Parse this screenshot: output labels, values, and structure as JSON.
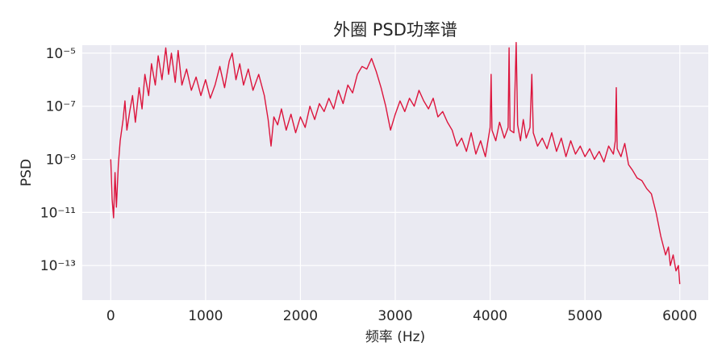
{
  "chart_data": {
    "type": "line",
    "title": "外圈 PSD功率谱",
    "xlabel": "频率 (Hz)",
    "ylabel": "PSD",
    "xlim": [
      -300,
      6300
    ],
    "ylim_log10": [
      -14.3,
      -4.7
    ],
    "y_scale": "log",
    "grid": true,
    "x_ticks": [
      {
        "value": 0,
        "label": "0"
      },
      {
        "value": 1000,
        "label": "1000"
      },
      {
        "value": 2000,
        "label": "2000"
      },
      {
        "value": 3000,
        "label": "3000"
      },
      {
        "value": 4000,
        "label": "4000"
      },
      {
        "value": 5000,
        "label": "5000"
      },
      {
        "value": 6000,
        "label": "6000"
      }
    ],
    "y_ticks": [
      {
        "value": -5,
        "label": "10⁻⁵"
      },
      {
        "value": -7,
        "label": "10⁻⁷"
      },
      {
        "value": -9,
        "label": "10⁻⁹"
      },
      {
        "value": -11,
        "label": "10⁻¹¹"
      },
      {
        "value": -13,
        "label": "10⁻¹³"
      }
    ],
    "series": [
      {
        "color": "#dc143c",
        "points": [
          [
            0,
            -9.0
          ],
          [
            15,
            -10.5
          ],
          [
            30,
            -11.2
          ],
          [
            45,
            -9.5
          ],
          [
            60,
            -10.8
          ],
          [
            80,
            -9.2
          ],
          [
            100,
            -8.3
          ],
          [
            130,
            -7.5
          ],
          [
            150,
            -6.8
          ],
          [
            170,
            -7.9
          ],
          [
            200,
            -7.2
          ],
          [
            230,
            -6.6
          ],
          [
            260,
            -7.6
          ],
          [
            300,
            -6.3
          ],
          [
            330,
            -7.1
          ],
          [
            360,
            -5.8
          ],
          [
            400,
            -6.6
          ],
          [
            430,
            -5.4
          ],
          [
            470,
            -6.2
          ],
          [
            500,
            -5.1
          ],
          [
            540,
            -6.0
          ],
          [
            580,
            -4.8
          ],
          [
            610,
            -5.8
          ],
          [
            640,
            -5.0
          ],
          [
            680,
            -6.1
          ],
          [
            710,
            -4.9
          ],
          [
            750,
            -6.2
          ],
          [
            800,
            -5.6
          ],
          [
            850,
            -6.4
          ],
          [
            900,
            -5.9
          ],
          [
            950,
            -6.6
          ],
          [
            1000,
            -6.0
          ],
          [
            1050,
            -6.7
          ],
          [
            1100,
            -6.2
          ],
          [
            1150,
            -5.5
          ],
          [
            1200,
            -6.3
          ],
          [
            1250,
            -5.3
          ],
          [
            1280,
            -5.0
          ],
          [
            1320,
            -6.0
          ],
          [
            1360,
            -5.4
          ],
          [
            1400,
            -6.2
          ],
          [
            1450,
            -5.6
          ],
          [
            1500,
            -6.4
          ],
          [
            1560,
            -5.8
          ],
          [
            1620,
            -6.6
          ],
          [
            1660,
            -7.5
          ],
          [
            1690,
            -8.5
          ],
          [
            1720,
            -7.4
          ],
          [
            1760,
            -7.7
          ],
          [
            1800,
            -7.1
          ],
          [
            1850,
            -7.9
          ],
          [
            1900,
            -7.3
          ],
          [
            1950,
            -8.0
          ],
          [
            2000,
            -7.4
          ],
          [
            2050,
            -7.8
          ],
          [
            2100,
            -7.0
          ],
          [
            2150,
            -7.5
          ],
          [
            2200,
            -6.9
          ],
          [
            2250,
            -7.2
          ],
          [
            2300,
            -6.7
          ],
          [
            2350,
            -7.1
          ],
          [
            2400,
            -6.4
          ],
          [
            2450,
            -6.9
          ],
          [
            2500,
            -6.2
          ],
          [
            2550,
            -6.5
          ],
          [
            2600,
            -5.8
          ],
          [
            2650,
            -5.5
          ],
          [
            2700,
            -5.6
          ],
          [
            2750,
            -5.2
          ],
          [
            2800,
            -5.7
          ],
          [
            2850,
            -6.3
          ],
          [
            2900,
            -7.0
          ],
          [
            2950,
            -7.9
          ],
          [
            3000,
            -7.3
          ],
          [
            3050,
            -6.8
          ],
          [
            3100,
            -7.2
          ],
          [
            3150,
            -6.7
          ],
          [
            3200,
            -7.0
          ],
          [
            3250,
            -6.4
          ],
          [
            3300,
            -6.8
          ],
          [
            3350,
            -7.1
          ],
          [
            3400,
            -6.7
          ],
          [
            3450,
            -7.4
          ],
          [
            3500,
            -7.2
          ],
          [
            3550,
            -7.6
          ],
          [
            3600,
            -7.9
          ],
          [
            3650,
            -8.5
          ],
          [
            3700,
            -8.2
          ],
          [
            3750,
            -8.7
          ],
          [
            3800,
            -8.0
          ],
          [
            3850,
            -8.8
          ],
          [
            3900,
            -8.3
          ],
          [
            3950,
            -8.9
          ],
          [
            4000,
            -7.8
          ],
          [
            4010,
            -5.8
          ],
          [
            4020,
            -7.9
          ],
          [
            4060,
            -8.3
          ],
          [
            4100,
            -7.6
          ],
          [
            4150,
            -8.2
          ],
          [
            4190,
            -7.8
          ],
          [
            4200,
            -4.8
          ],
          [
            4210,
            -7.9
          ],
          [
            4250,
            -8.0
          ],
          [
            4275,
            -4.6
          ],
          [
            4290,
            -7.7
          ],
          [
            4320,
            -8.3
          ],
          [
            4350,
            -7.5
          ],
          [
            4380,
            -8.2
          ],
          [
            4420,
            -7.8
          ],
          [
            4440,
            -5.8
          ],
          [
            4455,
            -8.0
          ],
          [
            4500,
            -8.5
          ],
          [
            4550,
            -8.2
          ],
          [
            4600,
            -8.6
          ],
          [
            4650,
            -8.0
          ],
          [
            4700,
            -8.7
          ],
          [
            4750,
            -8.2
          ],
          [
            4800,
            -8.9
          ],
          [
            4850,
            -8.3
          ],
          [
            4900,
            -8.8
          ],
          [
            4950,
            -8.5
          ],
          [
            5000,
            -8.9
          ],
          [
            5050,
            -8.6
          ],
          [
            5100,
            -9.0
          ],
          [
            5150,
            -8.7
          ],
          [
            5200,
            -9.1
          ],
          [
            5250,
            -8.5
          ],
          [
            5300,
            -8.8
          ],
          [
            5320,
            -8.3
          ],
          [
            5330,
            -6.3
          ],
          [
            5340,
            -8.6
          ],
          [
            5380,
            -8.9
          ],
          [
            5420,
            -8.4
          ],
          [
            5460,
            -9.2
          ],
          [
            5500,
            -9.4
          ],
          [
            5550,
            -9.7
          ],
          [
            5600,
            -9.8
          ],
          [
            5650,
            -10.1
          ],
          [
            5700,
            -10.3
          ],
          [
            5750,
            -11.0
          ],
          [
            5800,
            -11.9
          ],
          [
            5850,
            -12.6
          ],
          [
            5880,
            -12.3
          ],
          [
            5900,
            -13.0
          ],
          [
            5930,
            -12.6
          ],
          [
            5960,
            -13.2
          ],
          [
            5985,
            -13.0
          ],
          [
            6000,
            -13.7
          ]
        ]
      }
    ]
  }
}
